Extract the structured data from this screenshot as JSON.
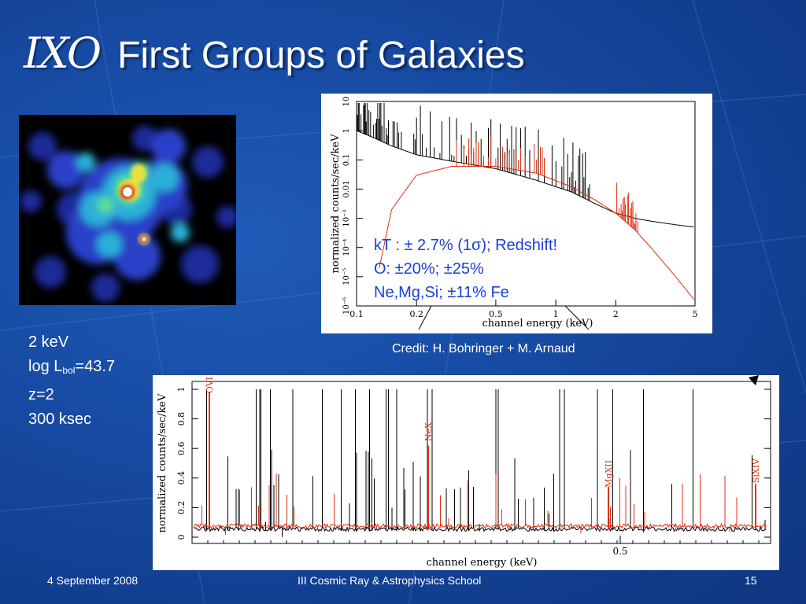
{
  "slide": {
    "logo": "IXO",
    "title": "First Groups of Galaxies",
    "parameters": {
      "energy": "2 keV",
      "log_l_prefix": "log L",
      "log_l_sub": "bol",
      "log_l_value": "=43.7",
      "redshift": "z=2",
      "exposure": "300 ksec"
    },
    "fit_results": [
      "kT : ± 2.7% (1σ); Redshift!",
      "O: ±20%; ±25%",
      "Ne,Mg,Si; ±11% Fe"
    ],
    "credit": "Credit: H. Bohringer + M. Arnaud"
  },
  "chart_data": [
    {
      "type": "line",
      "title": "",
      "xlabel": "channel energy (keV)",
      "ylabel": "normalized counts/sec/keV",
      "x_scale": "log",
      "y_scale": "log",
      "xlim": [
        0.1,
        5
      ],
      "ylim": [
        1e-06,
        10
      ],
      "x_ticks": [
        "0.1",
        "0.2",
        "0.5",
        "1",
        "2",
        "5"
      ],
      "y_ticks": [
        "10⁻⁶",
        "10⁻⁵",
        "10⁻⁴",
        "10⁻³",
        "0.01",
        "0.1",
        "1",
        "10"
      ],
      "series": [
        {
          "color": "#000000",
          "x": [
            0.1,
            0.12,
            0.15,
            0.2,
            0.3,
            0.5,
            0.8,
            1.2,
            1.6,
            2,
            2.5,
            3,
            4,
            5
          ],
          "y": [
            1.0,
            0.6,
            0.3,
            0.15,
            0.09,
            0.05,
            0.02,
            0.008,
            0.003,
            0.0015,
            0.001,
            0.0008,
            0.0006,
            0.0005
          ]
        },
        {
          "color": "#e03010",
          "x": [
            0.13,
            0.15,
            0.2,
            0.3,
            0.5,
            0.8,
            1.2,
            1.6,
            2,
            2.5,
            3,
            4,
            5
          ],
          "y": [
            2e-05,
            0.002,
            0.03,
            0.06,
            0.06,
            0.035,
            0.012,
            0.004,
            0.0015,
            0.0004,
            0.0001,
            1e-05,
            1.5e-06
          ]
        }
      ]
    },
    {
      "type": "line",
      "title": "",
      "xlabel": "channel energy (keV)",
      "ylabel": "normalized counts/sec/keV",
      "ylim": [
        0,
        1
      ],
      "x_ticks": [
        "0.5"
      ],
      "y_ticks": [
        "0",
        "0.2",
        "0.4",
        "0.6",
        "0.8",
        "1"
      ],
      "annotations": [
        "OVI",
        "NeX",
        "MgXII",
        "SiXIV"
      ],
      "series": [
        {
          "color": "#000000"
        },
        {
          "color": "#e03010"
        }
      ]
    }
  ],
  "footer": {
    "date": "4 September 2008",
    "event": "III Cosmic Ray & Astrophysics School",
    "page": "15"
  }
}
